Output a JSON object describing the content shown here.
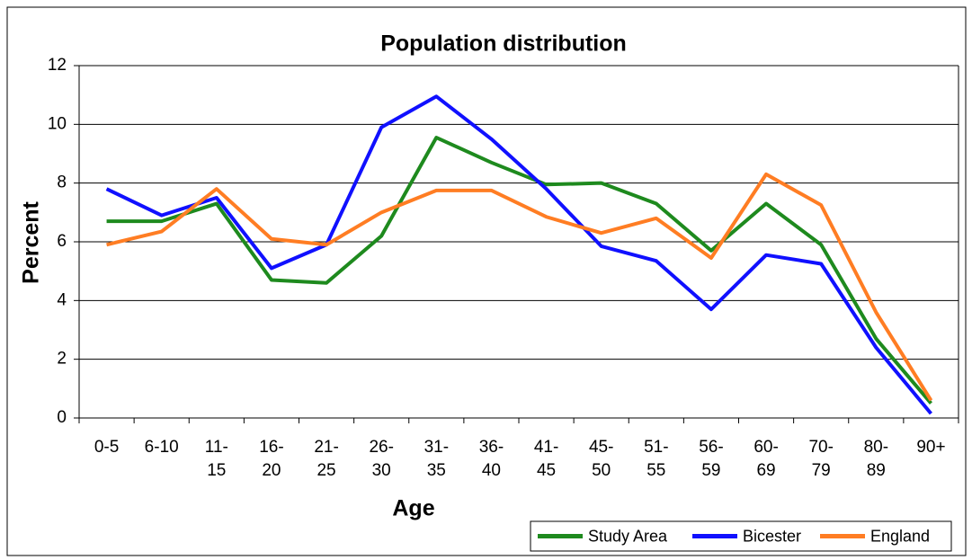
{
  "chart_data": {
    "type": "line",
    "title": "Population distribution",
    "x_label": "Age",
    "y_label": "Percent",
    "categories": [
      "0-5",
      "6-10",
      "11-\n15",
      "16-\n20",
      "21-\n25",
      "26-\n30",
      "31-\n35",
      "36-\n40",
      "41-\n45",
      "45-\n50",
      "51-\n55",
      "56-\n59",
      "60-\n69",
      "70-\n79",
      "80-\n89",
      "90+"
    ],
    "series": [
      {
        "name": "Study Area",
        "color": "#1e8a1e",
        "values": [
          6.7,
          6.7,
          7.3,
          4.7,
          4.6,
          6.2,
          9.55,
          8.7,
          7.95,
          8.0,
          7.3,
          5.7,
          7.3,
          5.9,
          2.7,
          0.5
        ]
      },
      {
        "name": "Bicester",
        "color": "#1010ff",
        "values": [
          7.8,
          6.9,
          7.5,
          5.1,
          5.9,
          9.9,
          10.95,
          9.5,
          7.8,
          5.85,
          5.35,
          3.7,
          5.55,
          5.25,
          2.4,
          0.15
        ]
      },
      {
        "name": "England",
        "color": "#ff7d23",
        "values": [
          5.9,
          6.35,
          7.8,
          6.1,
          5.9,
          7.0,
          7.75,
          7.75,
          6.85,
          6.3,
          6.8,
          5.45,
          8.3,
          7.25,
          3.6,
          0.6
        ]
      }
    ],
    "ylim": [
      0,
      12
    ],
    "yticks": [
      0,
      2,
      4,
      6,
      8,
      10,
      12
    ],
    "grid": true,
    "legend": "bottom-right"
  }
}
